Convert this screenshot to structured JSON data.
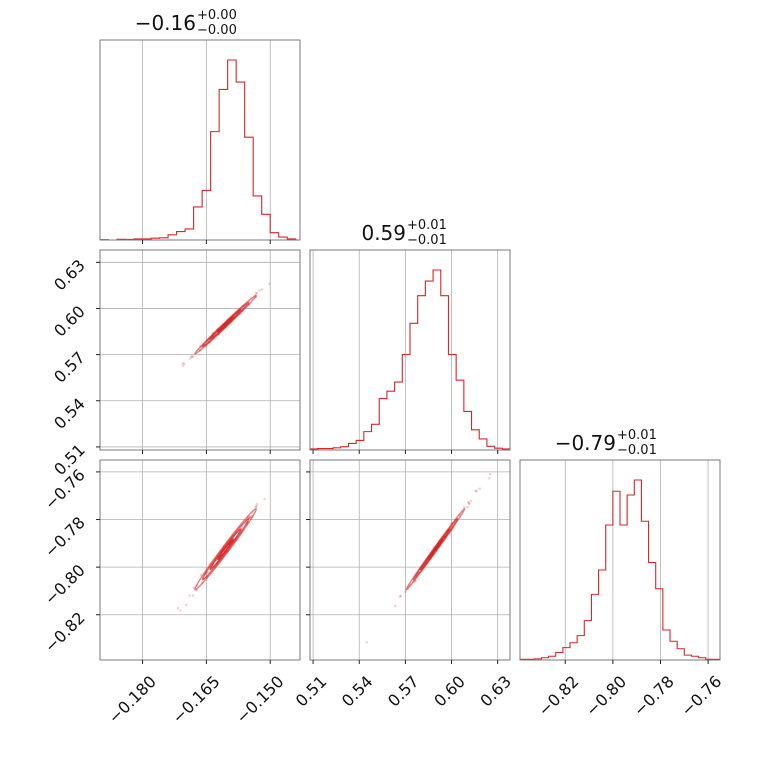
{
  "chart_data": {
    "type": "corner",
    "color": "#d62728",
    "grid": true,
    "parameters": [
      {
        "range": [
          -0.19,
          -0.143
        ],
        "ticks": [
          -0.18,
          -0.165,
          -0.15
        ],
        "tick_labels": [
          "−0.180",
          "−0.165",
          "−0.150"
        ],
        "title_main": "−0.16",
        "title_plus": "+0.00",
        "title_minus": "−0.00",
        "marginal": {
          "bin_edges": [
            -0.19,
            -0.188,
            -0.186,
            -0.184,
            -0.182,
            -0.18,
            -0.178,
            -0.176,
            -0.174,
            -0.172,
            -0.17,
            -0.168,
            -0.166,
            -0.164,
            -0.162,
            -0.16,
            -0.158,
            -0.156,
            -0.154,
            -0.152,
            -0.15,
            -0.148,
            -0.146,
            -0.144
          ],
          "heights": [
            0.002,
            0.0,
            0.004,
            0.003,
            0.006,
            0.006,
            0.01,
            0.012,
            0.028,
            0.046,
            0.06,
            0.18,
            0.27,
            0.59,
            0.82,
            0.98,
            0.86,
            0.56,
            0.24,
            0.14,
            0.04,
            0.016,
            0.006
          ]
        }
      },
      {
        "range": [
          0.508,
          0.638
        ],
        "ticks": [
          0.51,
          0.54,
          0.57,
          0.6,
          0.63
        ],
        "tick_labels": [
          "0.51",
          "0.54",
          "0.57",
          "0.60",
          "0.63"
        ],
        "title_main": "0.59",
        "title_plus": "+0.01",
        "title_minus": "−0.01",
        "marginal": {
          "bin_edges": [
            0.508,
            0.513,
            0.518,
            0.523,
            0.528,
            0.533,
            0.538,
            0.543,
            0.548,
            0.553,
            0.558,
            0.563,
            0.568,
            0.573,
            0.578,
            0.583,
            0.588,
            0.593,
            0.598,
            0.603,
            0.608,
            0.613,
            0.618,
            0.623,
            0.628,
            0.633,
            0.638
          ],
          "heights": [
            0.006,
            0.008,
            0.008,
            0.012,
            0.018,
            0.036,
            0.052,
            0.1,
            0.14,
            0.28,
            0.32,
            0.37,
            0.52,
            0.69,
            0.84,
            0.92,
            0.98,
            0.84,
            0.52,
            0.38,
            0.21,
            0.11,
            0.06,
            0.02,
            0.01,
            0.006
          ]
        }
      },
      {
        "range": [
          -0.839,
          -0.755
        ],
        "ticks": [
          -0.82,
          -0.8,
          -0.78,
          -0.76
        ],
        "tick_labels": [
          "−0.82",
          "−0.80",
          "−0.78",
          "−0.76"
        ],
        "title_main": "−0.79",
        "title_plus": "+0.01",
        "title_minus": "−0.01",
        "marginal": {
          "bin_edges": [
            -0.839,
            -0.836,
            -0.833,
            -0.83,
            -0.827,
            -0.824,
            -0.821,
            -0.818,
            -0.815,
            -0.812,
            -0.809,
            -0.806,
            -0.803,
            -0.8,
            -0.797,
            -0.794,
            -0.791,
            -0.788,
            -0.785,
            -0.782,
            -0.779,
            -0.776,
            -0.773,
            -0.77,
            -0.767,
            -0.764,
            -0.761,
            -0.758,
            -0.755
          ],
          "heights": [
            0.004,
            0.004,
            0.006,
            0.012,
            0.02,
            0.04,
            0.066,
            0.092,
            0.13,
            0.21,
            0.35,
            0.48,
            0.72,
            0.9,
            0.72,
            0.88,
            0.96,
            0.74,
            0.52,
            0.38,
            0.16,
            0.1,
            0.06,
            0.026,
            0.02,
            0.012,
            0.004,
            0.004
          ]
        }
      }
    ],
    "pairs": [
      {
        "x": 0,
        "y": 1,
        "center": [
          -0.1605,
          0.5895
        ],
        "sigma": [
          0.0036,
          0.0095
        ],
        "rho": 0.995
      },
      {
        "x": 0,
        "y": 2,
        "center": [
          -0.1605,
          -0.7925
        ],
        "sigma": [
          0.0036,
          0.0085
        ],
        "rho": 0.99
      },
      {
        "x": 1,
        "y": 2,
        "center": [
          0.5895,
          -0.7925
        ],
        "sigma": [
          0.0095,
          0.0085
        ],
        "rho": 0.997
      }
    ],
    "contour_levels": [
      0.5,
      1.0,
      1.5,
      2.0
    ]
  }
}
